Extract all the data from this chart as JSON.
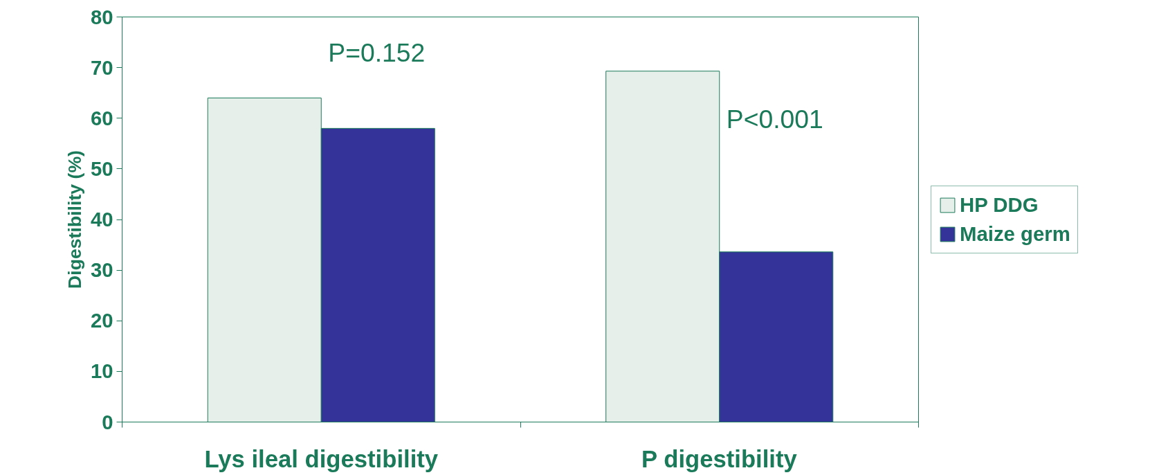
{
  "chart_data": {
    "type": "bar",
    "ylabel": "Digestibility (%)",
    "categories": [
      "Lys ileal digestibility",
      "P digestibility"
    ],
    "series": [
      {
        "name": "HP DDG",
        "color": "#e6efe9",
        "values": [
          64,
          69.3
        ]
      },
      {
        "name": "Maize germ",
        "color": "#333399",
        "values": [
          58,
          33.6
        ]
      }
    ],
    "ylim": [
      0,
      80
    ],
    "yticks": [
      0,
      10,
      20,
      30,
      40,
      50,
      60,
      70,
      80
    ],
    "annotations": [
      "P=0.152",
      "P<0.001"
    ],
    "grid": false,
    "legend": "right"
  }
}
